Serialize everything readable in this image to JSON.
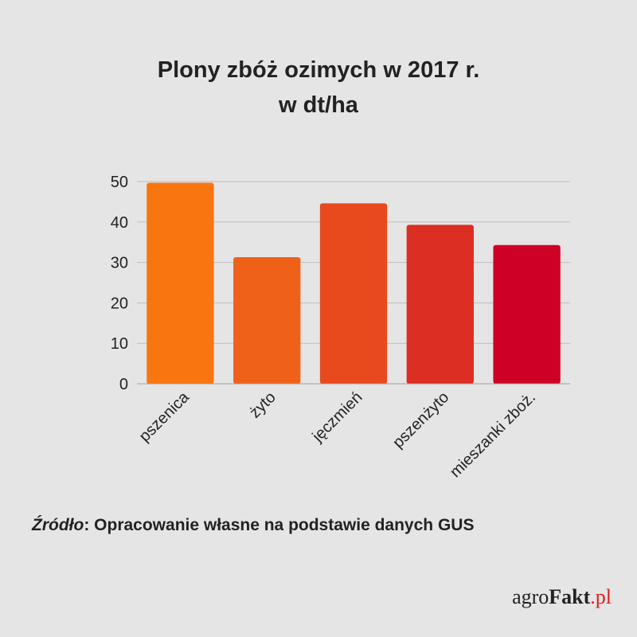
{
  "header": {
    "title_line1": "Plony zbóż ozimych w 2017 r.",
    "title_line2": "w dt/ha"
  },
  "chart_data": {
    "type": "bar",
    "title": "Plony zbóż ozimych w 2017 r. w dt/ha",
    "xlabel": "",
    "ylabel": "",
    "ylim": [
      0,
      50
    ],
    "yticks": [
      0,
      10,
      20,
      30,
      40,
      50
    ],
    "grid": true,
    "categories": [
      "pszenica",
      "żyto",
      "jęczmień",
      "pszenżyto",
      "mieszanki zboż."
    ],
    "values": [
      49.7,
      31.3,
      44.6,
      39.3,
      34.3
    ],
    "colors": [
      "#f87510",
      "#ef6118",
      "#e84a1e",
      "#dc2e22",
      "#cf0026"
    ]
  },
  "footer": {
    "source_label": "Źródło",
    "source_text": ": Opracowanie własne na podstawie danych GUS"
  },
  "logo": {
    "part1": "agro",
    "part2": "Fakt",
    "part3": ".pl"
  }
}
